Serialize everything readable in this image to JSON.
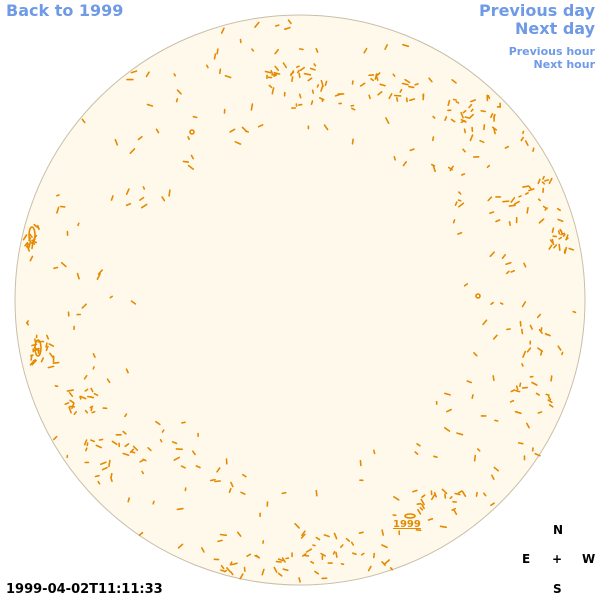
{
  "nav": {
    "back": "Back to 1999",
    "previous_day": "Previous day",
    "next_day": "Next day",
    "previous_hour": "Previous hour",
    "next_hour": "Next hour"
  },
  "compass": {
    "north": "N",
    "east": "E",
    "center": "+",
    "west": "W",
    "south": "S"
  },
  "timestamp": "1999-04-02T11:11:33",
  "year_link": "1999",
  "colors": {
    "link": "#6f9ae6",
    "disk_fill": "#fff9ec",
    "disk_stroke": "#c9bfa8",
    "contour": "#e58a00"
  }
}
